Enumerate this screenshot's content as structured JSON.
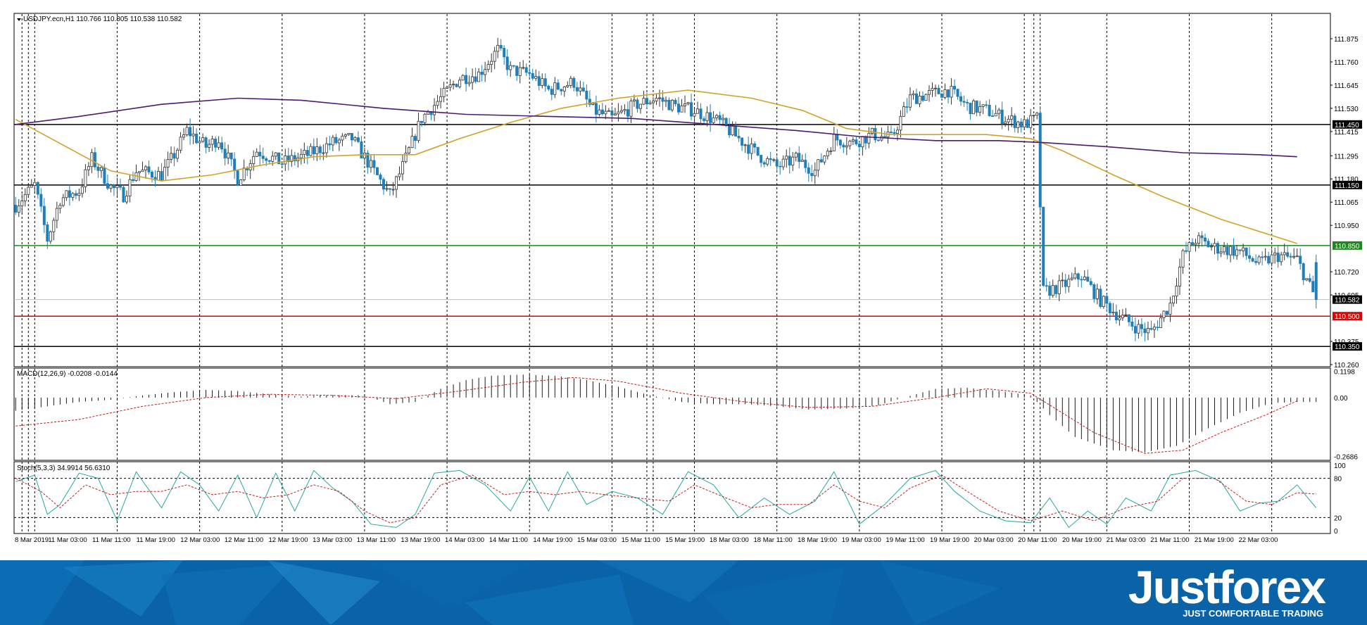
{
  "main_header": "USDJPY.ecn,H1  110.766 110.805 110.538 110.582",
  "macd_header": "MACD(12,26,9) -0.0208 -0.0144",
  "stoch_header": "Stoch(5,3,3) 34.9914 56.6310",
  "brand": {
    "logo": "Justforex",
    "tagline": "JUST COMFORTABLE TRADING"
  },
  "colors": {
    "bull_candle": "#ffffff",
    "bear_candle": "#1f7fb8",
    "ma_fast": "#d3a12a",
    "ma_slow": "#4b1a72",
    "level_black": "#000000",
    "level_green": "#1a8a1a",
    "level_red": "#e00000",
    "macd_signal": "#c02020",
    "stoch_main": "#2aa89a",
    "stoch_signal": "#c02020",
    "footer_bg": "#0a63a6"
  },
  "chart_data": [
    {
      "type": "candlestick",
      "symbol": "USDJPY.ecn",
      "timeframe": "H1",
      "ohlc_last": {
        "open": 110.766,
        "high": 110.805,
        "low": 110.538,
        "close": 110.582
      },
      "ylim": [
        110.26,
        111.99
      ],
      "y_ticks": [
        "111.875",
        "111.760",
        "111.645",
        "111.530",
        "111.415",
        "111.295",
        "111.180",
        "111.065",
        "110.950",
        "110.720",
        "110.605",
        "110.375",
        "110.260"
      ],
      "x_ticks": [
        "8 Mar 2019",
        "11 Mar 03:00",
        "11 Mar 11:00",
        "11 Mar 19:00",
        "12 Mar 03:00",
        "12 Mar 11:00",
        "12 Mar 19:00",
        "13 Mar 03:00",
        "13 Mar 11:00",
        "13 Mar 19:00",
        "14 Mar 03:00",
        "14 Mar 11:00",
        "14 Mar 19:00",
        "15 Mar 03:00",
        "15 Mar 11:00",
        "15 Mar 19:00",
        "18 Mar 03:00",
        "18 Mar 11:00",
        "18 Mar 19:00",
        "19 Mar 03:00",
        "19 Mar 11:00",
        "19 Mar 19:00",
        "20 Mar 03:00",
        "20 Mar 11:00",
        "20 Mar 19:00",
        "21 Mar 03:00",
        "21 Mar 11:00",
        "21 Mar 19:00",
        "22 Mar 03:00"
      ],
      "levels": [
        {
          "label": "111.450",
          "value": 111.45,
          "style": "black"
        },
        {
          "label": "111.150",
          "value": 111.15,
          "style": "black"
        },
        {
          "label": "110.850",
          "value": 110.85,
          "style": "green"
        },
        {
          "label": "110.582",
          "value": 110.582,
          "style": "current"
        },
        {
          "label": "110.500",
          "value": 110.5,
          "style": "red"
        },
        {
          "label": "110.350",
          "value": 110.35,
          "style": "black"
        }
      ],
      "price_path": [
        [
          0,
          111.05
        ],
        [
          6,
          111.15
        ],
        [
          10,
          110.88
        ],
        [
          14,
          111.08
        ],
        [
          20,
          111.12
        ],
        [
          24,
          111.28
        ],
        [
          30,
          111.14
        ],
        [
          34,
          111.1
        ],
        [
          38,
          111.22
        ],
        [
          46,
          111.2
        ],
        [
          50,
          111.3
        ],
        [
          54,
          111.42
        ],
        [
          60,
          111.34
        ],
        [
          64,
          111.38
        ],
        [
          70,
          111.18
        ],
        [
          76,
          111.32
        ],
        [
          84,
          111.26
        ],
        [
          92,
          111.3
        ],
        [
          100,
          111.36
        ],
        [
          106,
          111.38
        ],
        [
          112,
          111.24
        ],
        [
          118,
          111.1
        ],
        [
          122,
          111.24
        ],
        [
          128,
          111.48
        ],
        [
          134,
          111.58
        ],
        [
          140,
          111.68
        ],
        [
          146,
          111.7
        ],
        [
          152,
          111.82
        ],
        [
          156,
          111.72
        ],
        [
          162,
          111.7
        ],
        [
          168,
          111.62
        ],
        [
          176,
          111.66
        ],
        [
          182,
          111.52
        ],
        [
          188,
          111.48
        ],
        [
          196,
          111.55
        ],
        [
          202,
          111.58
        ],
        [
          208,
          111.54
        ],
        [
          214,
          111.52
        ],
        [
          222,
          111.46
        ],
        [
          228,
          111.38
        ],
        [
          234,
          111.3
        ],
        [
          240,
          111.24
        ],
        [
          246,
          111.28
        ],
        [
          252,
          111.22
        ],
        [
          258,
          111.38
        ],
        [
          264,
          111.36
        ],
        [
          270,
          111.4
        ],
        [
          276,
          111.38
        ],
        [
          282,
          111.58
        ],
        [
          288,
          111.6
        ],
        [
          294,
          111.62
        ],
        [
          300,
          111.54
        ],
        [
          306,
          111.52
        ],
        [
          312,
          111.48
        ],
        [
          318,
          111.45
        ],
        [
          322,
          111.48
        ],
        [
          324,
          110.62
        ],
        [
          330,
          110.65
        ],
        [
          336,
          110.7
        ],
        [
          342,
          110.58
        ],
        [
          348,
          110.5
        ],
        [
          354,
          110.44
        ],
        [
          358,
          110.42
        ],
        [
          364,
          110.56
        ],
        [
          368,
          110.8
        ],
        [
          372,
          110.88
        ],
        [
          378,
          110.84
        ],
        [
          386,
          110.82
        ],
        [
          392,
          110.76
        ],
        [
          398,
          110.8
        ],
        [
          404,
          110.78
        ],
        [
          410,
          110.58
        ]
      ],
      "ma_fast": [
        [
          0,
          111.475
        ],
        [
          30,
          111.22
        ],
        [
          46,
          111.17
        ],
        [
          62,
          111.2
        ],
        [
          78,
          111.25
        ],
        [
          94,
          111.29
        ],
        [
          110,
          111.3
        ],
        [
          126,
          111.3
        ],
        [
          140,
          111.38
        ],
        [
          156,
          111.46
        ],
        [
          172,
          111.53
        ],
        [
          190,
          111.58
        ],
        [
          212,
          111.62
        ],
        [
          232,
          111.58
        ],
        [
          248,
          111.52
        ],
        [
          262,
          111.43
        ],
        [
          276,
          111.4
        ],
        [
          292,
          111.4
        ],
        [
          306,
          111.4
        ],
        [
          320,
          111.38
        ],
        [
          330,
          111.32
        ],
        [
          346,
          111.2
        ],
        [
          362,
          111.09
        ],
        [
          380,
          110.98
        ],
        [
          396,
          110.9
        ],
        [
          404,
          110.86
        ]
      ],
      "ma_slow": [
        [
          0,
          111.45
        ],
        [
          20,
          111.49
        ],
        [
          46,
          111.55
        ],
        [
          70,
          111.58
        ],
        [
          90,
          111.57
        ],
        [
          116,
          111.53
        ],
        [
          142,
          111.5
        ],
        [
          168,
          111.49
        ],
        [
          194,
          111.48
        ],
        [
          220,
          111.45
        ],
        [
          246,
          111.42
        ],
        [
          266,
          111.39
        ],
        [
          290,
          111.37
        ],
        [
          310,
          111.37
        ],
        [
          324,
          111.36
        ],
        [
          344,
          111.34
        ],
        [
          368,
          111.31
        ],
        [
          392,
          111.3
        ],
        [
          404,
          111.29
        ]
      ]
    },
    {
      "type": "histogram",
      "name": "MACD(12,26,9)",
      "main": -0.0208,
      "signal_value": -0.0144,
      "ylim": [
        -0.28,
        0.125
      ],
      "y_ticks": [
        "0.1198",
        "0.00",
        "-0.2686"
      ],
      "histogram_path": [
        [
          0,
          -0.06
        ],
        [
          10,
          -0.04
        ],
        [
          20,
          -0.02
        ],
        [
          30,
          -0.01
        ],
        [
          40,
          0.01
        ],
        [
          50,
          0.025
        ],
        [
          60,
          0.035
        ],
        [
          70,
          0.03
        ],
        [
          80,
          0.015
        ],
        [
          90,
          0.005
        ],
        [
          100,
          0.012
        ],
        [
          110,
          0.01
        ],
        [
          118,
          -0.03
        ],
        [
          126,
          -0.02
        ],
        [
          134,
          0.04
        ],
        [
          142,
          0.08
        ],
        [
          150,
          0.1
        ],
        [
          160,
          0.105
        ],
        [
          170,
          0.1
        ],
        [
          180,
          0.08
        ],
        [
          190,
          0.05
        ],
        [
          200,
          0.01
        ],
        [
          210,
          -0.02
        ],
        [
          220,
          -0.03
        ],
        [
          230,
          -0.03
        ],
        [
          240,
          -0.04
        ],
        [
          250,
          -0.055
        ],
        [
          262,
          -0.05
        ],
        [
          272,
          -0.035
        ],
        [
          280,
          0.0
        ],
        [
          290,
          0.04
        ],
        [
          300,
          0.045
        ],
        [
          310,
          0.03
        ],
        [
          320,
          0.01
        ],
        [
          326,
          -0.08
        ],
        [
          334,
          -0.18
        ],
        [
          346,
          -0.24
        ],
        [
          356,
          -0.25
        ],
        [
          366,
          -0.22
        ],
        [
          376,
          -0.14
        ],
        [
          386,
          -0.07
        ],
        [
          396,
          -0.025
        ],
        [
          404,
          -0.02
        ]
      ],
      "signal_path": [
        [
          0,
          -0.13
        ],
        [
          20,
          -0.1
        ],
        [
          40,
          -0.04
        ],
        [
          60,
          0.0
        ],
        [
          80,
          0.015
        ],
        [
          100,
          0.01
        ],
        [
          120,
          -0.005
        ],
        [
          140,
          0.03
        ],
        [
          160,
          0.07
        ],
        [
          176,
          0.092
        ],
        [
          190,
          0.075
        ],
        [
          210,
          0.02
        ],
        [
          230,
          -0.02
        ],
        [
          250,
          -0.045
        ],
        [
          270,
          -0.04
        ],
        [
          290,
          0.0
        ],
        [
          306,
          0.04
        ],
        [
          320,
          0.02
        ],
        [
          340,
          -0.16
        ],
        [
          356,
          -0.255
        ],
        [
          368,
          -0.24
        ],
        [
          380,
          -0.16
        ],
        [
          394,
          -0.08
        ],
        [
          404,
          -0.015
        ]
      ]
    },
    {
      "type": "line",
      "name": "Stoch(5,3,3)",
      "main": 34.9914,
      "signal_value": 56.631,
      "ylim": [
        0,
        100
      ],
      "y_ticks": [
        "100",
        "80",
        "20",
        "0"
      ],
      "main_path": [
        [
          0,
          75
        ],
        [
          6,
          85
        ],
        [
          10,
          25
        ],
        [
          14,
          40
        ],
        [
          20,
          88
        ],
        [
          26,
          80
        ],
        [
          32,
          15
        ],
        [
          38,
          90
        ],
        [
          46,
          35
        ],
        [
          52,
          90
        ],
        [
          58,
          70
        ],
        [
          64,
          30
        ],
        [
          70,
          85
        ],
        [
          76,
          20
        ],
        [
          82,
          88
        ],
        [
          88,
          30
        ],
        [
          94,
          92
        ],
        [
          100,
          65
        ],
        [
          106,
          45
        ],
        [
          112,
          10
        ],
        [
          120,
          5
        ],
        [
          126,
          25
        ],
        [
          132,
          88
        ],
        [
          140,
          92
        ],
        [
          148,
          70
        ],
        [
          156,
          30
        ],
        [
          162,
          82
        ],
        [
          168,
          30
        ],
        [
          174,
          90
        ],
        [
          180,
          40
        ],
        [
          188,
          60
        ],
        [
          196,
          50
        ],
        [
          204,
          25
        ],
        [
          212,
          90
        ],
        [
          220,
          70
        ],
        [
          228,
          20
        ],
        [
          236,
          50
        ],
        [
          244,
          25
        ],
        [
          252,
          45
        ],
        [
          258,
          90
        ],
        [
          266,
          10
        ],
        [
          274,
          40
        ],
        [
          282,
          80
        ],
        [
          290,
          92
        ],
        [
          296,
          60
        ],
        [
          304,
          30
        ],
        [
          312,
          15
        ],
        [
          320,
          12
        ],
        [
          326,
          50
        ],
        [
          332,
          5
        ],
        [
          338,
          30
        ],
        [
          344,
          10
        ],
        [
          350,
          50
        ],
        [
          358,
          30
        ],
        [
          364,
          85
        ],
        [
          372,
          92
        ],
        [
          380,
          75
        ],
        [
          386,
          30
        ],
        [
          392,
          42
        ],
        [
          398,
          45
        ],
        [
          404,
          70
        ],
        [
          410,
          35
        ]
      ],
      "signal_path": [
        [
          0,
          80
        ],
        [
          8,
          60
        ],
        [
          14,
          35
        ],
        [
          22,
          70
        ],
        [
          30,
          55
        ],
        [
          38,
          60
        ],
        [
          46,
          60
        ],
        [
          54,
          70
        ],
        [
          62,
          55
        ],
        [
          70,
          60
        ],
        [
          78,
          50
        ],
        [
          86,
          55
        ],
        [
          94,
          70
        ],
        [
          102,
          60
        ],
        [
          110,
          30
        ],
        [
          118,
          12
        ],
        [
          126,
          20
        ],
        [
          134,
          70
        ],
        [
          144,
          85
        ],
        [
          154,
          55
        ],
        [
          162,
          60
        ],
        [
          170,
          55
        ],
        [
          178,
          60
        ],
        [
          186,
          55
        ],
        [
          196,
          50
        ],
        [
          206,
          45
        ],
        [
          214,
          70
        ],
        [
          224,
          50
        ],
        [
          232,
          35
        ],
        [
          240,
          40
        ],
        [
          250,
          40
        ],
        [
          258,
          70
        ],
        [
          266,
          45
        ],
        [
          274,
          35
        ],
        [
          282,
          65
        ],
        [
          292,
          85
        ],
        [
          300,
          60
        ],
        [
          310,
          30
        ],
        [
          320,
          15
        ],
        [
          330,
          30
        ],
        [
          340,
          15
        ],
        [
          350,
          35
        ],
        [
          360,
          45
        ],
        [
          368,
          80
        ],
        [
          378,
          80
        ],
        [
          388,
          45
        ],
        [
          396,
          40
        ],
        [
          404,
          58
        ],
        [
          410,
          56
        ]
      ]
    }
  ]
}
